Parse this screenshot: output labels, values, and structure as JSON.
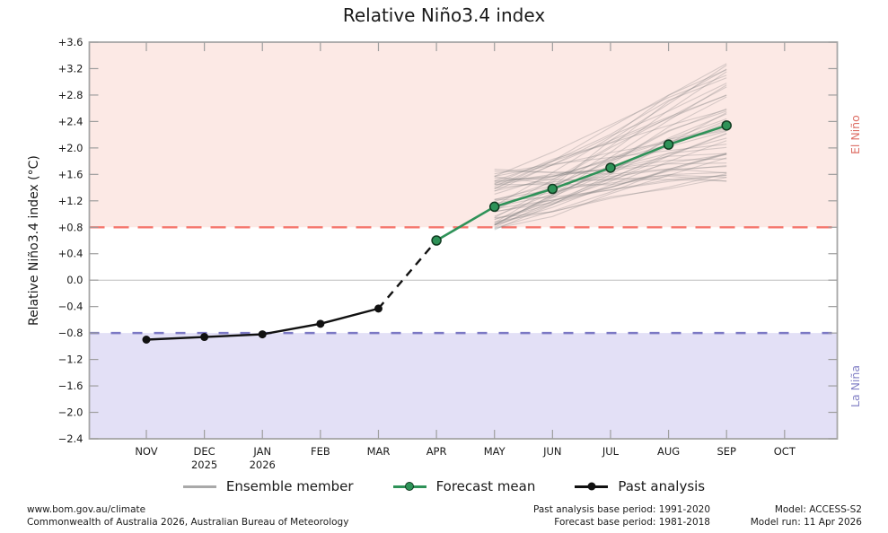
{
  "title": "Relative Niño3.4 index",
  "chart_data": {
    "type": "line",
    "title": "Relative Niño3.4 index",
    "xlabel": "",
    "ylabel": "Relative Niño3.4 index (°C)",
    "ylim": [
      -2.4,
      3.6
    ],
    "ytick_labels": [
      "+3.6",
      "+3.2",
      "+2.8",
      "+2.4",
      "+2.0",
      "+1.6",
      "+1.2",
      "+0.8",
      "+0.4",
      "0.0",
      "−0.4",
      "−0.8",
      "−1.2",
      "−1.6",
      "−2.0",
      "−2.4"
    ],
    "months": [
      {
        "label": "NOV"
      },
      {
        "label": "DEC",
        "year": "2025"
      },
      {
        "label": "JAN",
        "year": "2026"
      },
      {
        "label": "FEB"
      },
      {
        "label": "MAR"
      },
      {
        "label": "APR"
      },
      {
        "label": "MAY"
      },
      {
        "label": "JUN"
      },
      {
        "label": "JUL"
      },
      {
        "label": "AUG"
      },
      {
        "label": "SEP"
      },
      {
        "label": "OCT"
      }
    ],
    "series": [
      {
        "name": "Past analysis",
        "months": [
          "NOV",
          "DEC",
          "JAN",
          "FEB",
          "MAR"
        ],
        "values": [
          -0.9,
          -0.86,
          -0.82,
          -0.66,
          -0.43
        ],
        "color": "#111111"
      },
      {
        "name": "Forecast mean",
        "months": [
          "APR",
          "MAY",
          "JUN",
          "JUL",
          "AUG",
          "SEP"
        ],
        "values": [
          0.6,
          1.11,
          1.38,
          1.7,
          2.05,
          2.34
        ],
        "color": "#2e9258"
      }
    ],
    "transition_dashed": {
      "from": "MAR",
      "to": "APR"
    },
    "ensemble": {
      "name": "Ensemble member",
      "count": 50,
      "months": [
        "MAY",
        "JUN",
        "JUL",
        "AUG",
        "SEP"
      ],
      "spread_at_start": [
        0.75,
        1.7
      ],
      "spread_at_end": [
        1.3,
        3.2
      ],
      "color": "rgba(125,125,125,0.30)"
    },
    "thresholds": {
      "el_nino": {
        "value": 0.8,
        "label": "El Niño",
        "line_color": "#f5766c",
        "region_color": "#fce9e5",
        "label_color": "#dd6f66"
      },
      "la_nina": {
        "value": -0.8,
        "label": "La Niña",
        "line_color": "#7b78c4",
        "region_color": "#e3e0f6",
        "label_color": "#8381c6"
      }
    },
    "zero_line": 0.0,
    "grid": false,
    "legend_position": "bottom"
  },
  "legend": {
    "ensemble": "Ensemble member",
    "forecast": "Forecast mean",
    "past": "Past analysis"
  },
  "footer": {
    "url": "www.bom.gov.au/climate",
    "copyright": "Commonwealth of Australia 2026, Australian Bureau of Meteorology",
    "past_base": "Past analysis base period: 1991-2020",
    "forecast_base": "Forecast base period: 1981-2018",
    "model": "Model: ACCESS-S2",
    "model_run": "Model run: 11 Apr 2026"
  }
}
